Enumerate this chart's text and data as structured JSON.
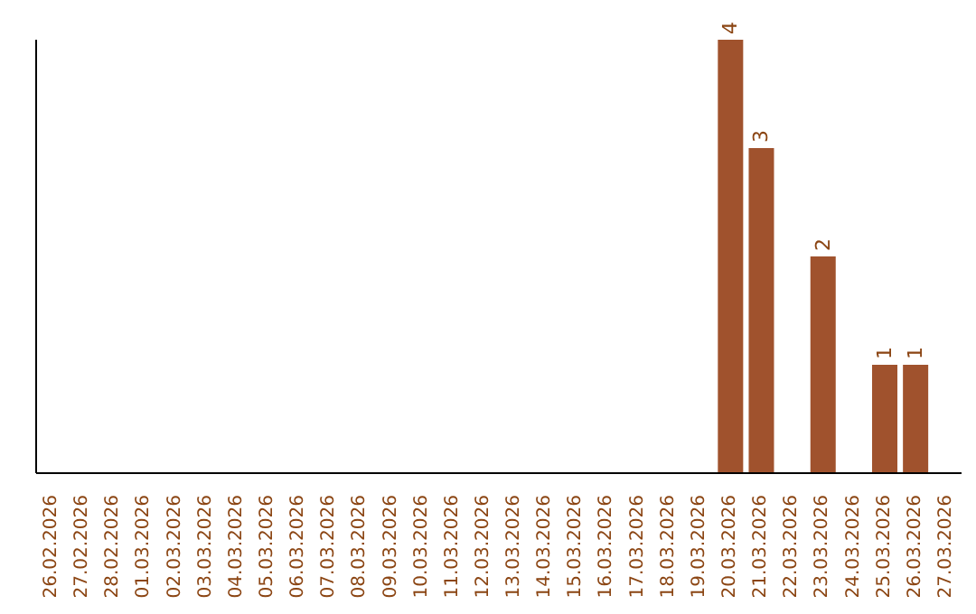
{
  "chart_data": {
    "type": "bar",
    "categories": [
      "26.02.2026",
      "27.02.2026",
      "28.02.2026",
      "01.03.2026",
      "02.03.2026",
      "03.03.2026",
      "04.03.2026",
      "05.03.2026",
      "06.03.2026",
      "07.03.2026",
      "08.03.2026",
      "09.03.2026",
      "10.03.2026",
      "11.03.2026",
      "12.03.2026",
      "13.03.2026",
      "14.03.2026",
      "15.03.2026",
      "16.03.2026",
      "17.03.2026",
      "18.03.2026",
      "19.03.2026",
      "20.03.2026",
      "21.03.2026",
      "22.03.2026",
      "23.03.2026",
      "24.03.2026",
      "25.03.2026",
      "26.03.2026",
      "27.03.2026"
    ],
    "values": [
      null,
      null,
      null,
      null,
      null,
      null,
      null,
      null,
      null,
      null,
      null,
      null,
      null,
      null,
      null,
      null,
      null,
      null,
      null,
      null,
      null,
      null,
      4,
      3,
      null,
      2,
      null,
      1,
      1,
      null
    ],
    "data_labels": true,
    "color": "#a0522d"
  }
}
